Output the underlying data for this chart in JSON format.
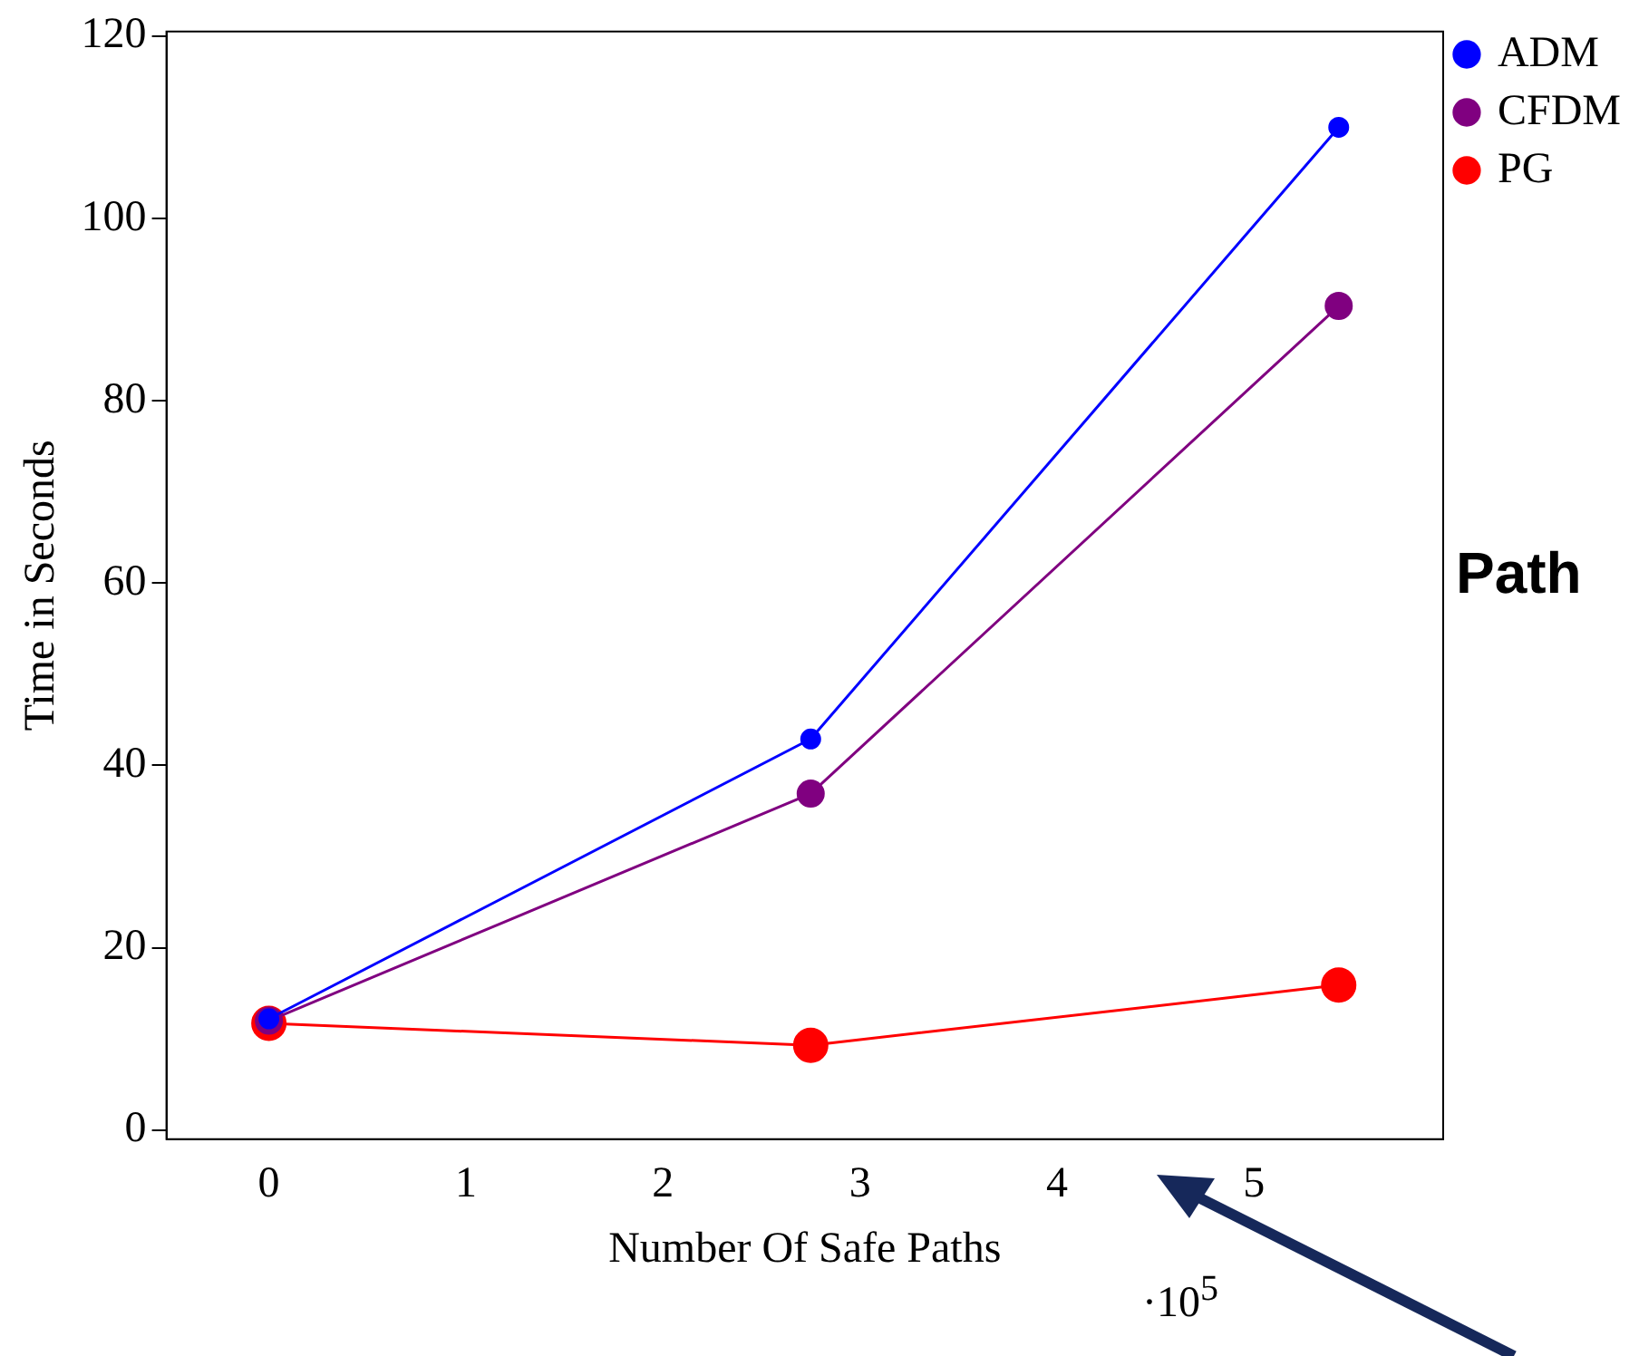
{
  "chart_data": {
    "type": "line",
    "xlabel": "Number Of Safe Paths",
    "ylabel": "Time in Seconds",
    "x": [
      0,
      2.75,
      5.43
    ],
    "series": [
      {
        "name": "ADM",
        "color": "#0000ff",
        "values": [
          12.2,
          42.9,
          110
        ]
      },
      {
        "name": "CFDM",
        "color": "#800080",
        "values": [
          12,
          36.9,
          90.4
        ]
      },
      {
        "name": "PG",
        "color": "#ff0000",
        "values": [
          11.7,
          9.3,
          15.9
        ]
      }
    ],
    "xlim": [
      -0.52,
      5.96
    ],
    "xticks": [
      0,
      1,
      2,
      3,
      4,
      5
    ],
    "ylim": [
      -1,
      120.5
    ],
    "yticks": [
      0,
      20,
      40,
      60,
      80,
      100,
      120
    ],
    "grid": false,
    "legend": "top right",
    "marker": "circle",
    "line_style": "solid",
    "annotations": [
      "·10$^{5}$",
      "Path"
    ]
  }
}
